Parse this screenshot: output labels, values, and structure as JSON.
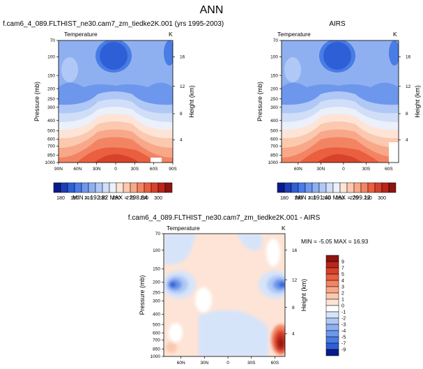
{
  "figure_title": "ANN",
  "chart_data": [
    {
      "type": "heatmap",
      "title": "f.cam6_4_089.FLTHIST_ne30.cam7_zm_tiedke2K.001 (yrs 1995-2003)",
      "field_label": "Temperature",
      "units": "K",
      "ylabel": "Pressure (mb)",
      "y2label": "Height (km)",
      "xticks": [
        "90N",
        "60N",
        "30N",
        "0",
        "30S",
        "60S",
        "90S"
      ],
      "yticks": [
        "70",
        "100",
        "150",
        "200",
        "250",
        "300",
        "400",
        "500",
        "600",
        "700",
        "850",
        "1000"
      ],
      "y2ticks": [
        "16",
        "12",
        "8",
        "4"
      ],
      "min_max_text": "MIN = 192.82   MAX = 298.64",
      "colorbar_ticks": [
        "180",
        "190",
        "210",
        "230",
        "250",
        "270",
        "290",
        "300"
      ],
      "colors": [
        "#0a1a8c",
        "#1e3db5",
        "#2f5fd6",
        "#4a7ce6",
        "#6d97ec",
        "#8fb0f0",
        "#b0c8f5",
        "#d0def8",
        "#ebf0fb",
        "#fde4d6",
        "#fbc9b0",
        "#f8a888",
        "#f38463",
        "#ea5f3f",
        "#d8412a",
        "#b8261d",
        "#8d140f"
      ],
      "min": 192.82,
      "max": 298.64
    },
    {
      "type": "heatmap",
      "title": "AIRS",
      "field_label": "Temperature",
      "units": "K",
      "ylabel": "Pressure (mb)",
      "y2label": "Height (km)",
      "xticks": [
        "60N",
        "30N",
        "0",
        "30S",
        "60S"
      ],
      "yticks": [
        "70",
        "100",
        "150",
        "200",
        "250",
        "300",
        "400",
        "500",
        "600",
        "700",
        "850",
        "1000"
      ],
      "y2ticks": [
        "16",
        "12",
        "8",
        "4"
      ],
      "min_max_text": "MIN = 191.40   MAX = 299.12",
      "colorbar_ticks": [
        "180",
        "190",
        "210",
        "230",
        "250",
        "270",
        "290",
        "300"
      ],
      "min": 191.4,
      "max": 299.12
    },
    {
      "type": "heatmap",
      "title": "f.cam6_4_089.FLTHIST_ne30.cam7_zm_tiedke2K.001 - AIRS",
      "field_label": "Temperature",
      "units": "K",
      "ylabel": "Pressure (mb)",
      "y2label": "Height (km)",
      "xticks": [
        "60N",
        "30N",
        "0",
        "30S",
        "60S"
      ],
      "yticks": [
        "70",
        "100",
        "150",
        "200",
        "250",
        "300",
        "400",
        "500",
        "600",
        "700",
        "850",
        "1000"
      ],
      "y2ticks": [
        "16",
        "12",
        "8",
        "4"
      ],
      "min_max_text": "MIN = -5.05   MAX = 16.93",
      "colorbar_ticks": [
        "9",
        "7",
        "5",
        "4",
        "3",
        "2",
        "1",
        "0",
        "-1",
        "-2",
        "-3",
        "-4",
        "-5",
        "-7",
        "-9"
      ],
      "colors": [
        "#8d140f",
        "#b8261d",
        "#d8412a",
        "#ea5f3f",
        "#f38463",
        "#f8a888",
        "#fbc9b0",
        "#fde4d6",
        "#ffffff",
        "#d6e4fa",
        "#b0c8f5",
        "#8fb0f0",
        "#6d97ec",
        "#4a7ce6",
        "#2f5fd6",
        "#0a1a8c"
      ],
      "min": -5.05,
      "max": 16.93
    }
  ]
}
